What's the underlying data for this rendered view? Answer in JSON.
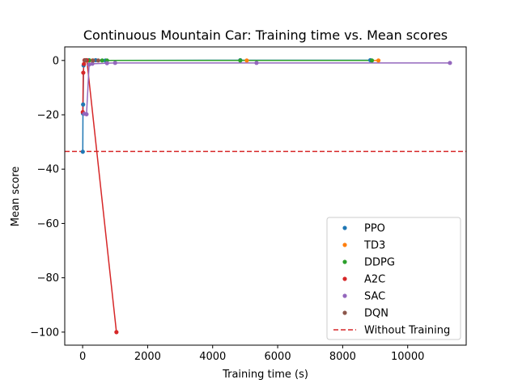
{
  "chart_data": {
    "type": "scatter",
    "title": "Continuous Mountain Car: Training time vs. Mean scores",
    "xlabel": "Training time (s)",
    "ylabel": "Mean score",
    "xlim": [
      -550,
      11800
    ],
    "ylim": [
      -104.8,
      5
    ],
    "xticks": [
      0,
      2000,
      4000,
      6000,
      8000,
      10000
    ],
    "xtick_labels": [
      "0",
      "2000",
      "4000",
      "6000",
      "8000",
      "10000"
    ],
    "yticks": [
      0,
      -20,
      -40,
      -60,
      -80,
      -100
    ],
    "ytick_labels": [
      "0",
      "−20",
      "−40",
      "−60",
      "−80",
      "−100"
    ],
    "grid": false,
    "legend": "lower-right",
    "series": [
      {
        "name": "PPO",
        "color": "#1f77b4",
        "line": true,
        "x": [
          5,
          10,
          15,
          30,
          60,
          120,
          200,
          400,
          700,
          4850,
          8850
        ],
        "y": [
          -33.6,
          -19.5,
          -16.2,
          -1.8,
          0.0,
          0.1,
          0.1,
          0.1,
          0.0,
          0.1,
          0.1
        ]
      },
      {
        "name": "TD3",
        "color": "#ff7f0e",
        "line": true,
        "x": [
          100,
          300,
          5050,
          9100
        ],
        "y": [
          0.0,
          0.0,
          0.0,
          0.0
        ]
      },
      {
        "name": "DDPG",
        "color": "#2ca02c",
        "line": true,
        "x": [
          80,
          200,
          600,
          750,
          4850,
          8900
        ],
        "y": [
          0.0,
          0.0,
          0.0,
          0.0,
          0.0,
          0.0
        ]
      },
      {
        "name": "A2C",
        "color": "#d62728",
        "line": true,
        "x": [
          5,
          20,
          40,
          60,
          100,
          130,
          1040
        ],
        "y": [
          -19.0,
          -4.5,
          -1.3,
          0.1,
          0.1,
          0.1,
          -100.0
        ]
      },
      {
        "name": "SAC",
        "color": "#9467bd",
        "line": true,
        "x": [
          50,
          120,
          200,
          300,
          750,
          1000,
          5350,
          11300
        ],
        "y": [
          -19.6,
          -19.8,
          -1.5,
          -1.2,
          -1.0,
          -0.9,
          -0.9,
          -0.9
        ]
      },
      {
        "name": "DQN",
        "color": "#8c564b",
        "line": false,
        "x": [
          80,
          320,
          480
        ],
        "y": [
          0.1,
          0.0,
          0.0
        ]
      }
    ],
    "reference_line": {
      "name": "Without Training",
      "y": -33.5,
      "color": "#d62728",
      "style": "dashed"
    }
  }
}
